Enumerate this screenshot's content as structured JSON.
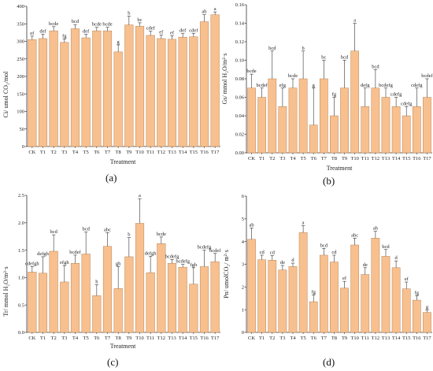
{
  "style": {
    "bar_fill": "#f7c08e",
    "bar_stroke": "#b8845a",
    "axis_color": "#333333",
    "error_color": "#333333"
  },
  "chart_data": [
    {
      "type": "bar",
      "panel_label": "(a)",
      "xlabel": "Treatment",
      "ylabel": "Ci/ umol CO₂/mol",
      "ylim": [
        0,
        400
      ],
      "yticks": [
        0,
        50,
        100,
        150,
        200,
        250,
        300,
        350,
        400
      ],
      "categories": [
        "CK",
        "T1",
        "T2",
        "T3",
        "T4",
        "T5",
        "T6",
        "T7",
        "T8",
        "T9",
        "T10",
        "T11",
        "T12",
        "T13",
        "T14",
        "T15",
        "T16",
        "T17"
      ],
      "values": [
        305,
        308,
        330,
        297,
        336,
        310,
        330,
        330,
        270,
        347,
        343,
        317,
        308,
        306,
        312,
        313,
        356,
        376
      ],
      "errors": [
        10,
        12,
        12,
        10,
        12,
        10,
        10,
        10,
        20,
        25,
        10,
        12,
        10,
        10,
        10,
        10,
        20,
        8
      ],
      "significance": [
        "ef",
        "def",
        "bcde",
        "fg",
        "bcd",
        "def",
        "bcde",
        "bcde",
        "g",
        "b",
        "bc",
        "cdef",
        "ef",
        "ef",
        "def",
        "cdef",
        "ab",
        "a"
      ]
    },
    {
      "type": "bar",
      "panel_label": "(b)",
      "xlabel": "Treatment",
      "ylabel": "Gs/ mmol H₂O/m²·s",
      "ylim": [
        0,
        0.16
      ],
      "yticks": [
        "0.00",
        "0.02",
        "0.04",
        "0.06",
        "0.08",
        "0.10",
        "0.12",
        "0.14",
        "0.16"
      ],
      "categories": [
        "CK",
        "T1",
        "T2",
        "T3",
        "T4",
        "T5",
        "T6",
        "T7",
        "T8",
        "T9",
        "T10",
        "T11",
        "T12",
        "T13",
        "T14",
        "T15",
        "T16",
        "T17"
      ],
      "values": [
        0.07,
        0.06,
        0.08,
        0.05,
        0.07,
        0.08,
        0.03,
        0.08,
        0.04,
        0.07,
        0.11,
        0.05,
        0.07,
        0.06,
        0.05,
        0.04,
        0.05,
        0.06
      ],
      "errors": [
        0.015,
        0.01,
        0.03,
        0.02,
        0.01,
        0.03,
        0.04,
        0.02,
        0.02,
        0.03,
        0.03,
        0.02,
        0.02,
        0.01,
        0.01,
        0.01,
        0.02,
        0.02
      ],
      "significance": [
        "bcde",
        "bcdef",
        "bcd",
        "efg",
        "bcde",
        "b",
        "g",
        "bc",
        "fg",
        "bcd",
        "a",
        "defg",
        "bcd",
        "bcdefg",
        "cdefg",
        "cdefg",
        "cdefg",
        "bcdef"
      ]
    },
    {
      "type": "bar",
      "panel_label": "(c)",
      "xlabel": "Treatment",
      "ylabel": "Tr/ mmol H₂O/m²·s",
      "ylim": [
        0,
        2.5
      ],
      "yticks": [
        "0.0",
        "0.5",
        "1.0",
        "1.5",
        "2.0",
        "2.5"
      ],
      "categories": [
        "CK",
        "T1",
        "T2",
        "T3",
        "T4",
        "T5",
        "T6",
        "T7",
        "T8",
        "T9",
        "T10",
        "T11",
        "T12",
        "T13",
        "T14",
        "T15",
        "T16",
        "T17"
      ],
      "values": [
        1.1,
        1.08,
        1.48,
        0.92,
        1.26,
        1.43,
        0.67,
        1.57,
        0.8,
        1.38,
        1.99,
        1.09,
        1.62,
        1.26,
        1.19,
        0.88,
        1.2,
        1.29
      ],
      "errors": [
        0.1,
        0.3,
        0.3,
        0.3,
        0.15,
        0.4,
        0.2,
        0.25,
        0.4,
        0.35,
        0.45,
        0.3,
        0.12,
        0.07,
        0.05,
        0.3,
        0.3,
        0.15
      ],
      "significance": [
        "cdefgh",
        "defgh",
        "bcd",
        "efgh",
        "bcdef",
        "bcd",
        "h",
        "abc",
        "gh",
        "b",
        "a",
        "defgh",
        "bcde",
        "bcdefg",
        "bcdefg",
        "fgh",
        "bcdefg",
        "bcdef"
      ]
    },
    {
      "type": "bar",
      "panel_label": "(d)",
      "xlabel": "",
      "ylabel": "Pn/ umolCO₂/ m²·s",
      "ylim": [
        0,
        6
      ],
      "yticks": [
        0,
        1,
        2,
        3,
        4,
        5,
        6
      ],
      "categories": [
        "CK",
        "T1",
        "T2",
        "T3",
        "T4",
        "T5",
        "T6",
        "T7",
        "T8",
        "T9",
        "T10",
        "T11",
        "T12",
        "T13",
        "T14",
        "T15",
        "T16",
        "T17"
      ],
      "values": [
        4.1,
        3.2,
        3.18,
        2.75,
        2.9,
        4.4,
        1.35,
        3.4,
        3.1,
        1.95,
        3.85,
        2.55,
        4.15,
        3.35,
        2.85,
        1.92,
        1.42,
        0.88
      ],
      "errors": [
        0.5,
        0.2,
        0.2,
        0.2,
        0.15,
        0.3,
        0.3,
        0.3,
        0.3,
        0.3,
        0.3,
        0.3,
        0.3,
        0.3,
        0.3,
        0.3,
        0.2,
        0.1
      ],
      "significance": [
        "ab",
        "cd",
        "cd",
        "de",
        "d",
        "a",
        "fg",
        "bcd",
        "cd",
        "ef",
        "abc",
        "de",
        "ab",
        "bcd",
        "d",
        "ef",
        "fg",
        "g"
      ]
    }
  ]
}
